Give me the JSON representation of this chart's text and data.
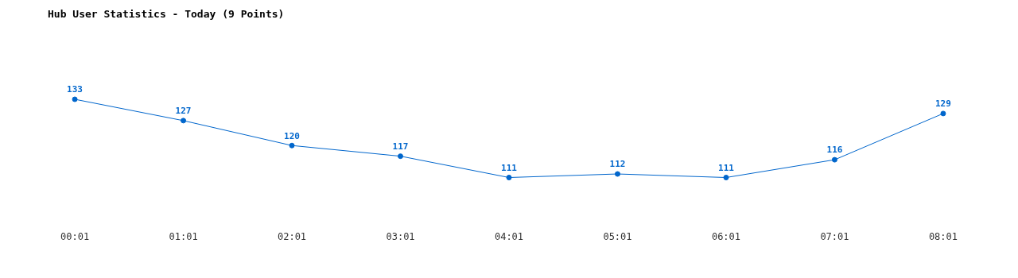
{
  "chart_data": {
    "type": "line",
    "title": "Hub User Statistics - Today (9 Points)",
    "categories": [
      "00:01",
      "01:01",
      "02:01",
      "03:01",
      "04:01",
      "05:01",
      "06:01",
      "07:01",
      "08:01"
    ],
    "series": [
      {
        "color": "#0066cc",
        "values": [
          133,
          127,
          120,
          117,
          111,
          112,
          111,
          116,
          129
        ]
      }
    ],
    "data_labels": true,
    "marker": "circle",
    "grid": false,
    "legend": false
  }
}
